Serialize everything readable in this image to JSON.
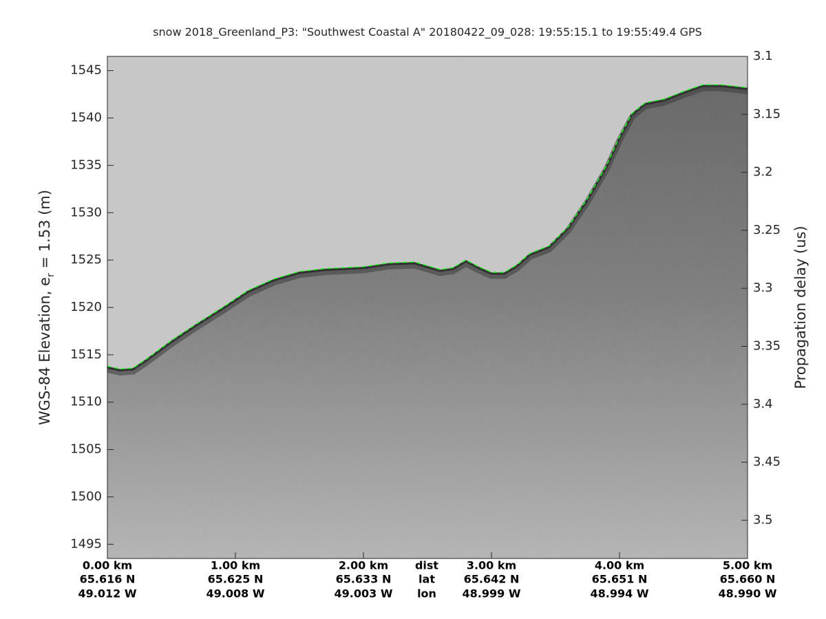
{
  "chart_data": {
    "type": "line",
    "title": "snow 2018_Greenland_P3: \"Southwest Coastal A\"  20180422_09_028: 19:55:15.1 to 19:55:49.4 GPS",
    "ylabel": [
      "WGS-84 Elevation, e",
      "r",
      " = 1.53 (m)"
    ],
    "y2label": "Propagation delay (us)",
    "xlim": [
      0,
      5
    ],
    "xticks": [
      {
        "value": 0,
        "label": "0.00 km"
      },
      {
        "value": 1,
        "label": "1.00 km"
      },
      {
        "value": 2,
        "label": "2.00 km"
      },
      {
        "value": 3,
        "label": "3.00 km"
      },
      {
        "value": 4,
        "label": "4.00 km"
      },
      {
        "value": 5,
        "label": "5.00 km"
      }
    ],
    "lat_labels": [
      "65.616 N",
      "65.625 N",
      "65.633 N",
      "65.642 N",
      "65.651 N",
      "65.660 N"
    ],
    "lon_labels": [
      "49.012 W",
      "49.008 W",
      "49.003 W",
      "48.999 W",
      "48.994 W",
      "48.990 W"
    ],
    "row_labels": [
      "dist",
      "lat",
      "lon"
    ],
    "ylim": [
      1493.5,
      1546.5
    ],
    "yticks": [
      1495,
      1500,
      1505,
      1510,
      1515,
      1520,
      1525,
      1530,
      1535,
      1540,
      1545
    ],
    "y2lim": [
      3.533,
      3.1
    ],
    "y2ticks": [
      3.1,
      3.15,
      3.2,
      3.25,
      3.3,
      3.35,
      3.4,
      3.45,
      3.5
    ],
    "series": [
      {
        "color": "#00ff00",
        "x": [
          0,
          0.1,
          0.2,
          0.3,
          0.5,
          0.7,
          0.9,
          1.1,
          1.3,
          1.5,
          1.7,
          2.0,
          2.2,
          2.4,
          2.5,
          2.6,
          2.7,
          2.8,
          2.9,
          3.0,
          3.1,
          3.2,
          3.3,
          3.45,
          3.6,
          3.75,
          3.9,
          4.0,
          4.1,
          4.2,
          4.35,
          4.5,
          4.65,
          4.8,
          5.0
        ],
        "values": [
          1513.8,
          1513.5,
          1513.6,
          1514.5,
          1516.5,
          1518.3,
          1520,
          1521.8,
          1523,
          1523.8,
          1524.1,
          1524.3,
          1524.7,
          1524.8,
          1524.4,
          1524,
          1524.2,
          1525,
          1524.3,
          1523.7,
          1523.7,
          1524.5,
          1525.7,
          1526.5,
          1528.5,
          1531.5,
          1535,
          1538,
          1540.5,
          1541.6,
          1542,
          1542.8,
          1543.5,
          1543.5,
          1543.2
        ]
      }
    ]
  }
}
